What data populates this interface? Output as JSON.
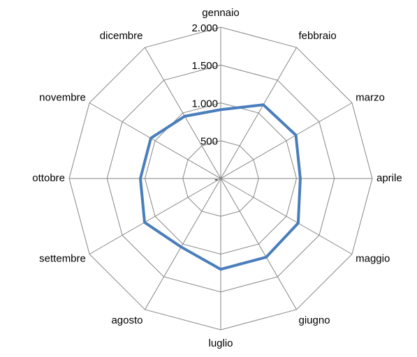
{
  "chart_data": {
    "type": "radar",
    "categories": [
      "gennaio",
      "febbraio",
      "marzo",
      "aprile",
      "maggio",
      "giugno",
      "luglio",
      "agosto",
      "settembre",
      "ottobre",
      "novembre",
      "dicembre"
    ],
    "values": [
      910,
      1125,
      1145,
      1050,
      1180,
      1200,
      1200,
      1045,
      1160,
      1060,
      1065,
      950
    ],
    "color": "#4a7ebb",
    "ylim": [
      0,
      2000
    ],
    "yticks": [
      {
        "value": 0,
        "label": "-"
      },
      500,
      {
        "value": 1000,
        "label": "1.000"
      },
      {
        "value": 1500,
        "label": "1.500"
      },
      {
        "value": 2000,
        "label": "2.000"
      }
    ],
    "grid": true
  }
}
